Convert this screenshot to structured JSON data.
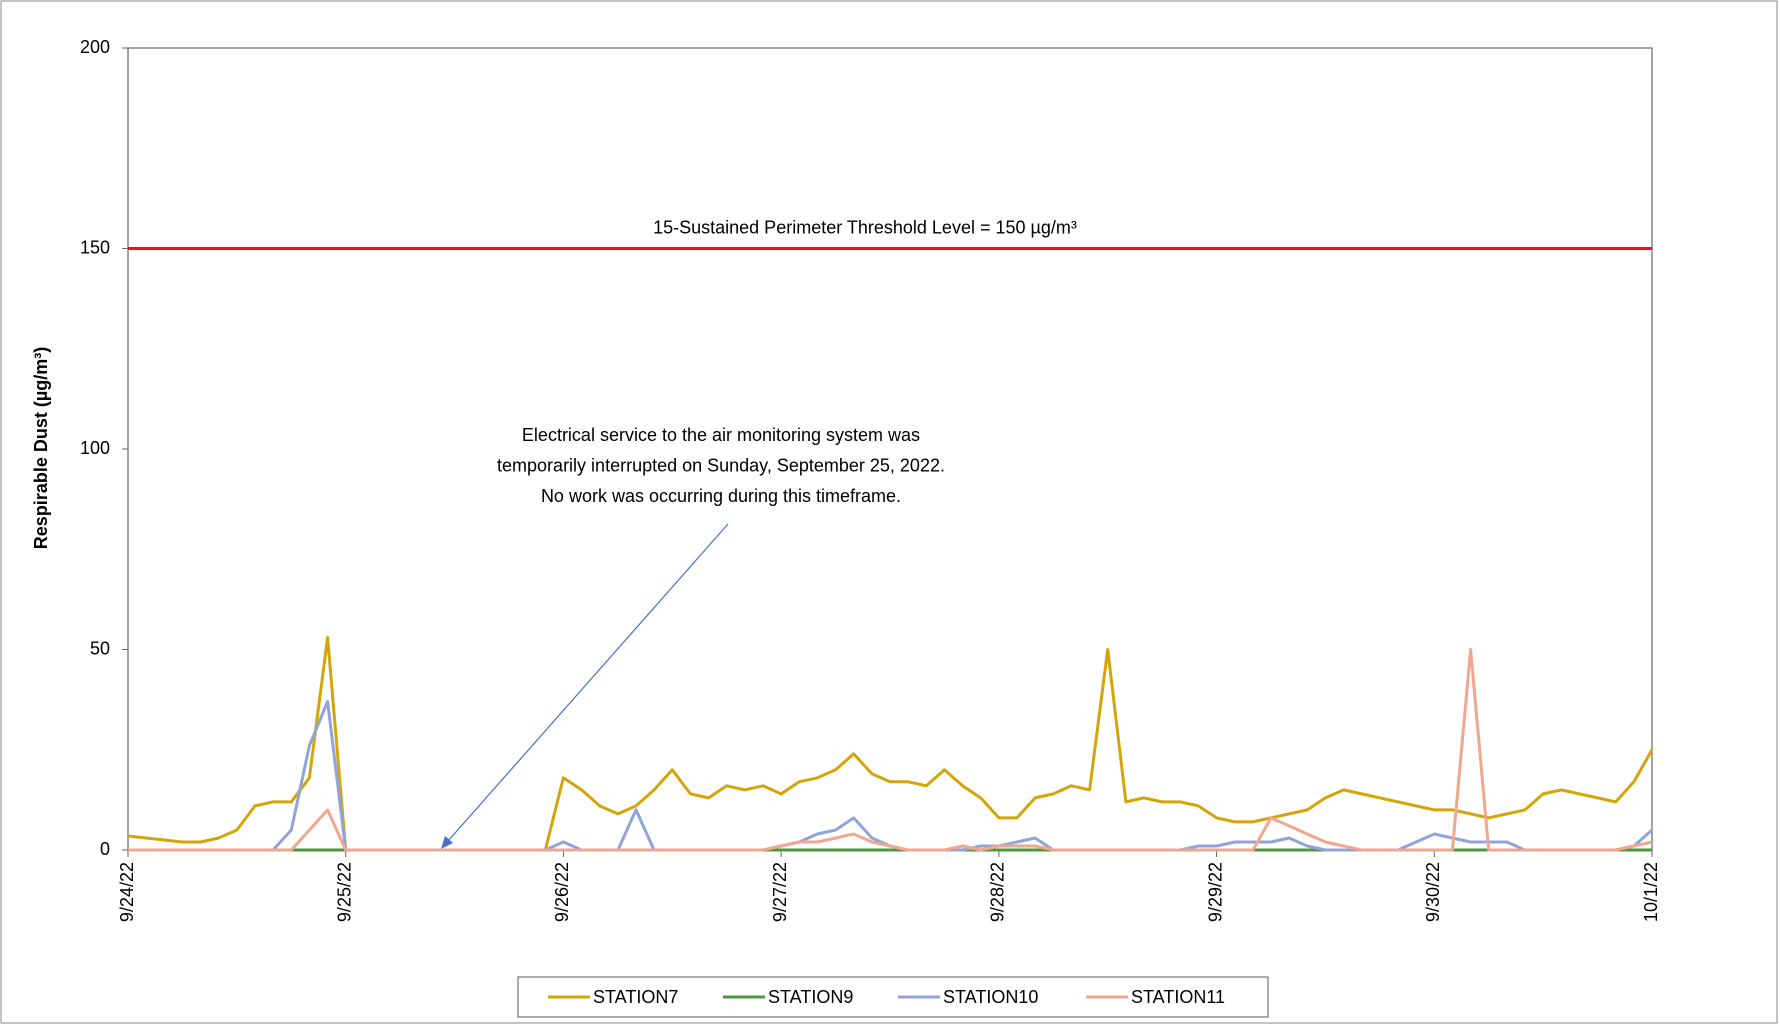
{
  "chart_data": {
    "type": "line",
    "y_label": "Respirable Dust (µg/m³)",
    "ylim": [
      0,
      200
    ],
    "yticks": [
      0,
      50,
      100,
      150,
      200
    ],
    "threshold": {
      "value": 150,
      "label": "15-Sustained Perimeter Threshold Level = 150 µg/m³",
      "color": "#e8141b"
    },
    "annotation": [
      "Electrical service to the air monitoring system was",
      "temporarily interrupted on Sunday, September 25, 2022.",
      "No work was occurring during this timeframe."
    ],
    "categories": [
      "9/24/22",
      null,
      null,
      null,
      null,
      null,
      null,
      null,
      null,
      null,
      null,
      null,
      "9/25/22",
      null,
      null,
      null,
      null,
      null,
      null,
      null,
      null,
      null,
      null,
      null,
      "9/26/22",
      null,
      null,
      null,
      null,
      null,
      null,
      null,
      null,
      null,
      null,
      null,
      "9/27/22",
      null,
      null,
      null,
      null,
      null,
      null,
      null,
      null,
      null,
      null,
      null,
      "9/28/22",
      null,
      null,
      null,
      null,
      null,
      null,
      null,
      null,
      null,
      null,
      null,
      "9/29/22",
      null,
      null,
      null,
      null,
      null,
      null,
      null,
      null,
      null,
      null,
      null,
      "9/30/22",
      null,
      null,
      null,
      null,
      null,
      null,
      null,
      null,
      null,
      null,
      null,
      "10/1/22"
    ],
    "series": [
      {
        "name": "STATION7",
        "color": "#d4a50a",
        "values": [
          3.5,
          3,
          2.5,
          2,
          2,
          3,
          5,
          11,
          12,
          12,
          18,
          53,
          0,
          0,
          0,
          0,
          0,
          0,
          0,
          0,
          0,
          0,
          0,
          0,
          18,
          15,
          11,
          9,
          11,
          15,
          20,
          14,
          13,
          16,
          15,
          16,
          14,
          17,
          18,
          20,
          24,
          19,
          17,
          17,
          16,
          20,
          16,
          13,
          8,
          8,
          13,
          14,
          16,
          15,
          50,
          12,
          13,
          12,
          12,
          11,
          8,
          7,
          7,
          8,
          9,
          10,
          13,
          15,
          14,
          13,
          12,
          11,
          10,
          10,
          9,
          8,
          9,
          10,
          14,
          15,
          14,
          13,
          12,
          17,
          25
        ]
      },
      {
        "name": "STATION9",
        "color": "#4a9a3a",
        "values": [
          0,
          0,
          0,
          0,
          0,
          0,
          0,
          0,
          0,
          0,
          0,
          0,
          0,
          0,
          0,
          0,
          0,
          0,
          0,
          0,
          0,
          0,
          0,
          0,
          0,
          0,
          0,
          0,
          0,
          0,
          0,
          0,
          0,
          0,
          0,
          0,
          0,
          0,
          0,
          0,
          0,
          0,
          0,
          0,
          0,
          0,
          0,
          0,
          0,
          0,
          0,
          0,
          0,
          0,
          0,
          0,
          0,
          0,
          0,
          0,
          0,
          0,
          0,
          0,
          0,
          0,
          0,
          0,
          0,
          0,
          0,
          0,
          0,
          0,
          0,
          0,
          0,
          0,
          0,
          0,
          0,
          0,
          0,
          0,
          0
        ]
      },
      {
        "name": "STATION10",
        "color": "#8fa3dc",
        "values": [
          0,
          0,
          0,
          0,
          0,
          0,
          0,
          0,
          0,
          5,
          26,
          37,
          0,
          0,
          0,
          0,
          0,
          0,
          0,
          0,
          0,
          0,
          0,
          0,
          2,
          0,
          0,
          0,
          10,
          0,
          0,
          0,
          0,
          0,
          0,
          0,
          1,
          2,
          4,
          5,
          8,
          3,
          1,
          0,
          0,
          0,
          0,
          1,
          1,
          2,
          3,
          0,
          0,
          0,
          0,
          0,
          0,
          0,
          0,
          1,
          1,
          2,
          2,
          2,
          3,
          1,
          0,
          0,
          0,
          0,
          0,
          2,
          4,
          3,
          2,
          2,
          2,
          0,
          0,
          0,
          0,
          0,
          0,
          1,
          5
        ]
      },
      {
        "name": "STATION11",
        "color": "#f2a68e",
        "values": [
          0,
          0,
          0,
          0,
          0,
          0,
          0,
          0,
          0,
          0,
          5,
          10,
          0,
          0,
          0,
          0,
          0,
          0,
          0,
          0,
          0,
          0,
          0,
          0,
          0,
          0,
          0,
          0,
          0,
          0,
          0,
          0,
          0,
          0,
          0,
          0,
          1,
          2,
          2,
          3,
          4,
          2,
          1,
          0,
          0,
          0,
          1,
          0,
          1,
          1,
          1,
          0,
          0,
          0,
          0,
          0,
          0,
          0,
          0,
          0,
          0,
          0,
          0,
          8,
          6,
          4,
          2,
          1,
          0,
          0,
          0,
          0,
          0,
          0,
          50,
          0,
          0,
          0,
          0,
          0,
          0,
          0,
          0,
          1,
          2
        ]
      }
    ]
  }
}
